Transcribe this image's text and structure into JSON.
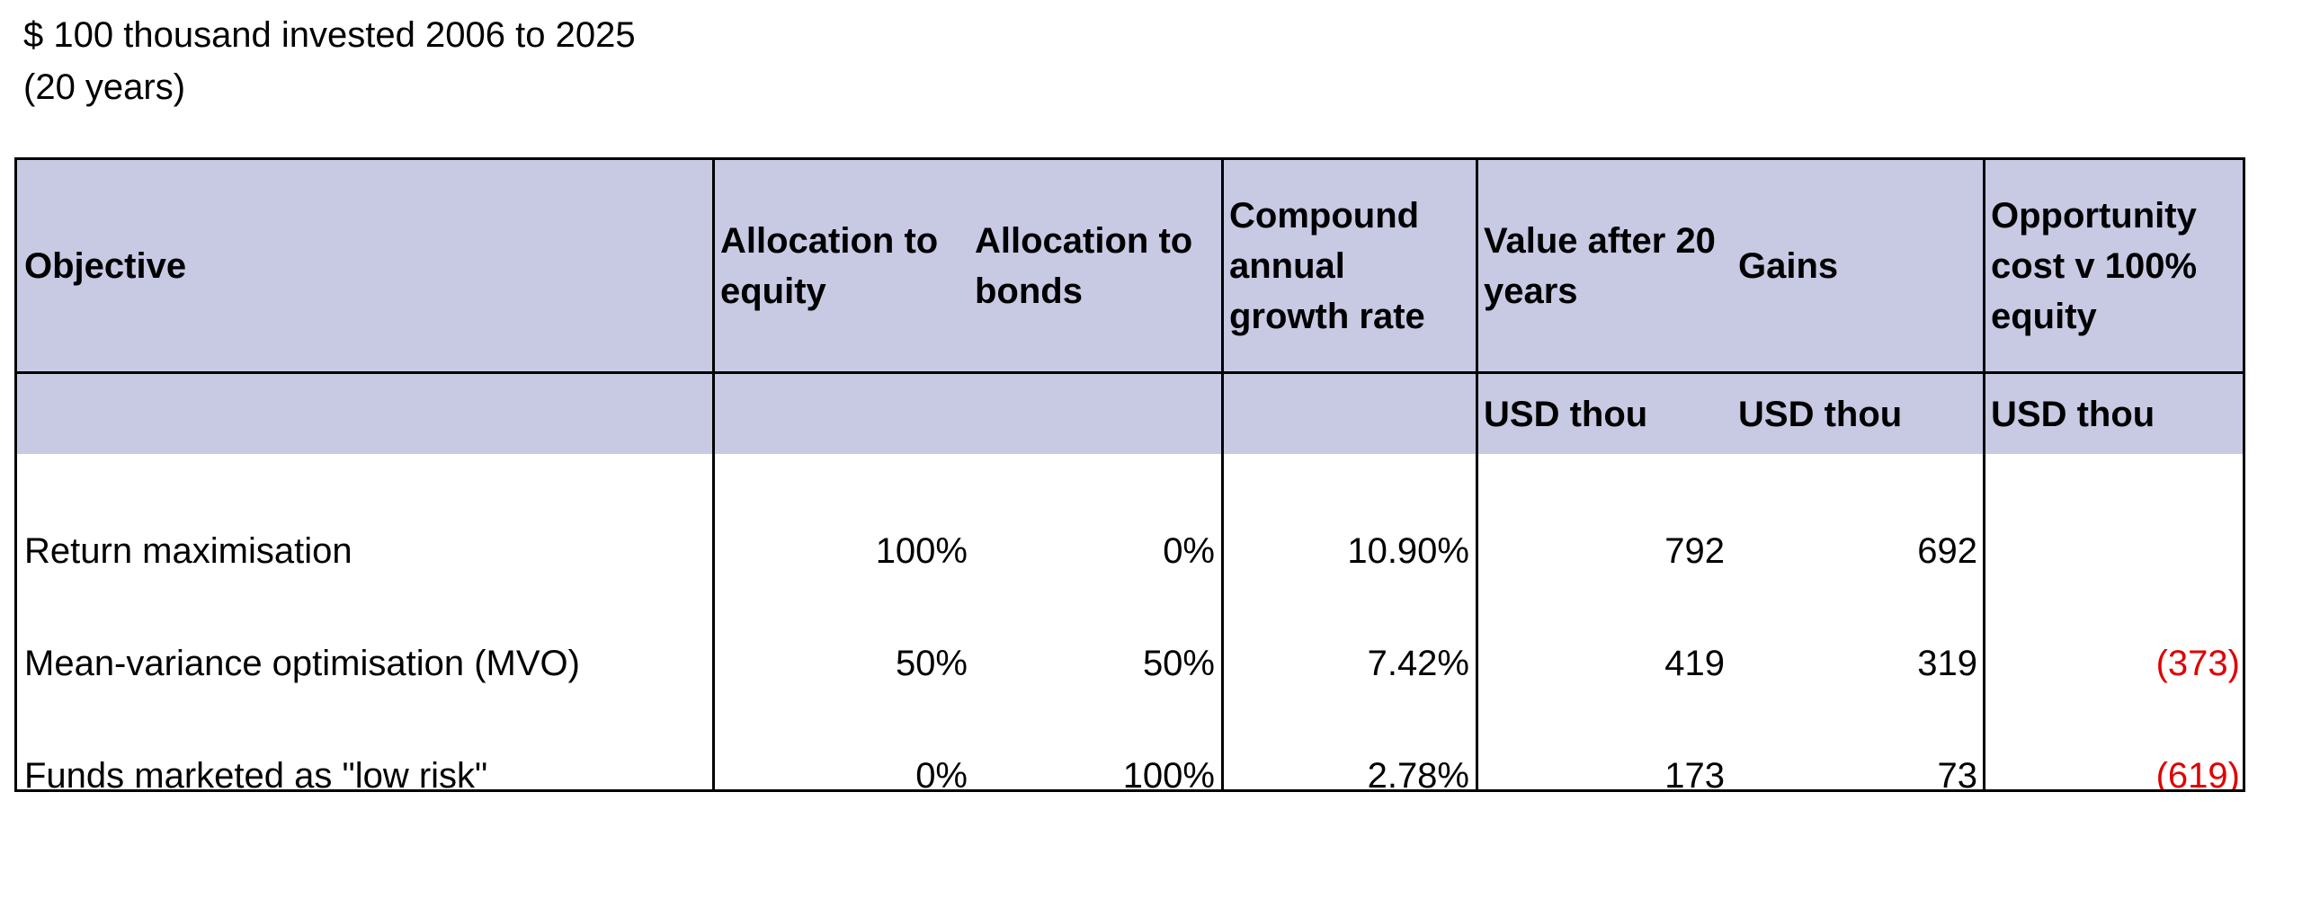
{
  "title_line1": "$ 100 thousand invested 2006 to 2025",
  "title_line2": "(20 years)",
  "headers": {
    "objective": "Objective",
    "alloc_equity": "Allocation to equity",
    "alloc_bonds": "Allocation to bonds",
    "cagr": "Compound annual growth rate",
    "value_after": "Value after 20  years",
    "gains": "Gains",
    "opportunity": "Opportunity cost v 100% equity"
  },
  "units": {
    "value_after": "USD thou",
    "gains": "USD thou",
    "opportunity": "USD thou"
  },
  "rows": [
    {
      "objective": "Return maximisation",
      "alloc_equity": "100%",
      "alloc_bonds": "0%",
      "cagr": "10.90%",
      "value_after": "792",
      "gains": "692",
      "opportunity": ""
    },
    {
      "objective": "Mean-variance optimisation (MVO)",
      "alloc_equity": "50%",
      "alloc_bonds": "50%",
      "cagr": "7.42%",
      "value_after": "419",
      "gains": "319",
      "opportunity": "(373)"
    },
    {
      "objective": "Funds marketed as \"low risk\"",
      "alloc_equity": "0%",
      "alloc_bonds": "100%",
      "cagr": "2.78%",
      "value_after": "173",
      "gains": "73",
      "opportunity": "(619)"
    }
  ],
  "colors": {
    "header_fill": "#c8cae4",
    "negative_text": "#e00000"
  }
}
